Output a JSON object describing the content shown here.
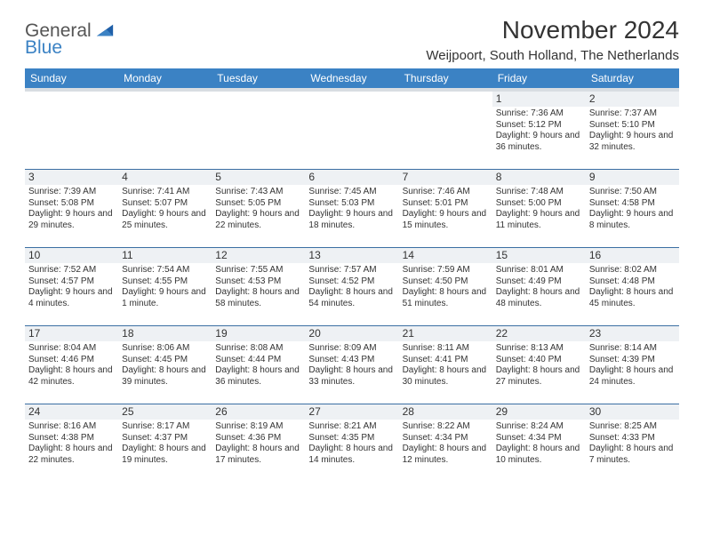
{
  "logo": {
    "line1": "General",
    "line2": "Blue"
  },
  "title": "November 2024",
  "subtitle": "Weijpoort, South Holland, The Netherlands",
  "colors": {
    "header_bg": "#3b82c4",
    "header_fg": "#ffffff",
    "rule": "#3b6fa3",
    "daynum_bg": "#eef1f4"
  },
  "dayHeaders": [
    "Sunday",
    "Monday",
    "Tuesday",
    "Wednesday",
    "Thursday",
    "Friday",
    "Saturday"
  ],
  "weeks": [
    [
      {
        "n": "",
        "sr": "",
        "ss": "",
        "dl": ""
      },
      {
        "n": "",
        "sr": "",
        "ss": "",
        "dl": ""
      },
      {
        "n": "",
        "sr": "",
        "ss": "",
        "dl": ""
      },
      {
        "n": "",
        "sr": "",
        "ss": "",
        "dl": ""
      },
      {
        "n": "",
        "sr": "",
        "ss": "",
        "dl": ""
      },
      {
        "n": "1",
        "sr": "Sunrise: 7:36 AM",
        "ss": "Sunset: 5:12 PM",
        "dl": "Daylight: 9 hours and 36 minutes."
      },
      {
        "n": "2",
        "sr": "Sunrise: 7:37 AM",
        "ss": "Sunset: 5:10 PM",
        "dl": "Daylight: 9 hours and 32 minutes."
      }
    ],
    [
      {
        "n": "3",
        "sr": "Sunrise: 7:39 AM",
        "ss": "Sunset: 5:08 PM",
        "dl": "Daylight: 9 hours and 29 minutes."
      },
      {
        "n": "4",
        "sr": "Sunrise: 7:41 AM",
        "ss": "Sunset: 5:07 PM",
        "dl": "Daylight: 9 hours and 25 minutes."
      },
      {
        "n": "5",
        "sr": "Sunrise: 7:43 AM",
        "ss": "Sunset: 5:05 PM",
        "dl": "Daylight: 9 hours and 22 minutes."
      },
      {
        "n": "6",
        "sr": "Sunrise: 7:45 AM",
        "ss": "Sunset: 5:03 PM",
        "dl": "Daylight: 9 hours and 18 minutes."
      },
      {
        "n": "7",
        "sr": "Sunrise: 7:46 AM",
        "ss": "Sunset: 5:01 PM",
        "dl": "Daylight: 9 hours and 15 minutes."
      },
      {
        "n": "8",
        "sr": "Sunrise: 7:48 AM",
        "ss": "Sunset: 5:00 PM",
        "dl": "Daylight: 9 hours and 11 minutes."
      },
      {
        "n": "9",
        "sr": "Sunrise: 7:50 AM",
        "ss": "Sunset: 4:58 PM",
        "dl": "Daylight: 9 hours and 8 minutes."
      }
    ],
    [
      {
        "n": "10",
        "sr": "Sunrise: 7:52 AM",
        "ss": "Sunset: 4:57 PM",
        "dl": "Daylight: 9 hours and 4 minutes."
      },
      {
        "n": "11",
        "sr": "Sunrise: 7:54 AM",
        "ss": "Sunset: 4:55 PM",
        "dl": "Daylight: 9 hours and 1 minute."
      },
      {
        "n": "12",
        "sr": "Sunrise: 7:55 AM",
        "ss": "Sunset: 4:53 PM",
        "dl": "Daylight: 8 hours and 58 minutes."
      },
      {
        "n": "13",
        "sr": "Sunrise: 7:57 AM",
        "ss": "Sunset: 4:52 PM",
        "dl": "Daylight: 8 hours and 54 minutes."
      },
      {
        "n": "14",
        "sr": "Sunrise: 7:59 AM",
        "ss": "Sunset: 4:50 PM",
        "dl": "Daylight: 8 hours and 51 minutes."
      },
      {
        "n": "15",
        "sr": "Sunrise: 8:01 AM",
        "ss": "Sunset: 4:49 PM",
        "dl": "Daylight: 8 hours and 48 minutes."
      },
      {
        "n": "16",
        "sr": "Sunrise: 8:02 AM",
        "ss": "Sunset: 4:48 PM",
        "dl": "Daylight: 8 hours and 45 minutes."
      }
    ],
    [
      {
        "n": "17",
        "sr": "Sunrise: 8:04 AM",
        "ss": "Sunset: 4:46 PM",
        "dl": "Daylight: 8 hours and 42 minutes."
      },
      {
        "n": "18",
        "sr": "Sunrise: 8:06 AM",
        "ss": "Sunset: 4:45 PM",
        "dl": "Daylight: 8 hours and 39 minutes."
      },
      {
        "n": "19",
        "sr": "Sunrise: 8:08 AM",
        "ss": "Sunset: 4:44 PM",
        "dl": "Daylight: 8 hours and 36 minutes."
      },
      {
        "n": "20",
        "sr": "Sunrise: 8:09 AM",
        "ss": "Sunset: 4:43 PM",
        "dl": "Daylight: 8 hours and 33 minutes."
      },
      {
        "n": "21",
        "sr": "Sunrise: 8:11 AM",
        "ss": "Sunset: 4:41 PM",
        "dl": "Daylight: 8 hours and 30 minutes."
      },
      {
        "n": "22",
        "sr": "Sunrise: 8:13 AM",
        "ss": "Sunset: 4:40 PM",
        "dl": "Daylight: 8 hours and 27 minutes."
      },
      {
        "n": "23",
        "sr": "Sunrise: 8:14 AM",
        "ss": "Sunset: 4:39 PM",
        "dl": "Daylight: 8 hours and 24 minutes."
      }
    ],
    [
      {
        "n": "24",
        "sr": "Sunrise: 8:16 AM",
        "ss": "Sunset: 4:38 PM",
        "dl": "Daylight: 8 hours and 22 minutes."
      },
      {
        "n": "25",
        "sr": "Sunrise: 8:17 AM",
        "ss": "Sunset: 4:37 PM",
        "dl": "Daylight: 8 hours and 19 minutes."
      },
      {
        "n": "26",
        "sr": "Sunrise: 8:19 AM",
        "ss": "Sunset: 4:36 PM",
        "dl": "Daylight: 8 hours and 17 minutes."
      },
      {
        "n": "27",
        "sr": "Sunrise: 8:21 AM",
        "ss": "Sunset: 4:35 PM",
        "dl": "Daylight: 8 hours and 14 minutes."
      },
      {
        "n": "28",
        "sr": "Sunrise: 8:22 AM",
        "ss": "Sunset: 4:34 PM",
        "dl": "Daylight: 8 hours and 12 minutes."
      },
      {
        "n": "29",
        "sr": "Sunrise: 8:24 AM",
        "ss": "Sunset: 4:34 PM",
        "dl": "Daylight: 8 hours and 10 minutes."
      },
      {
        "n": "30",
        "sr": "Sunrise: 8:25 AM",
        "ss": "Sunset: 4:33 PM",
        "dl": "Daylight: 8 hours and 7 minutes."
      }
    ]
  ]
}
